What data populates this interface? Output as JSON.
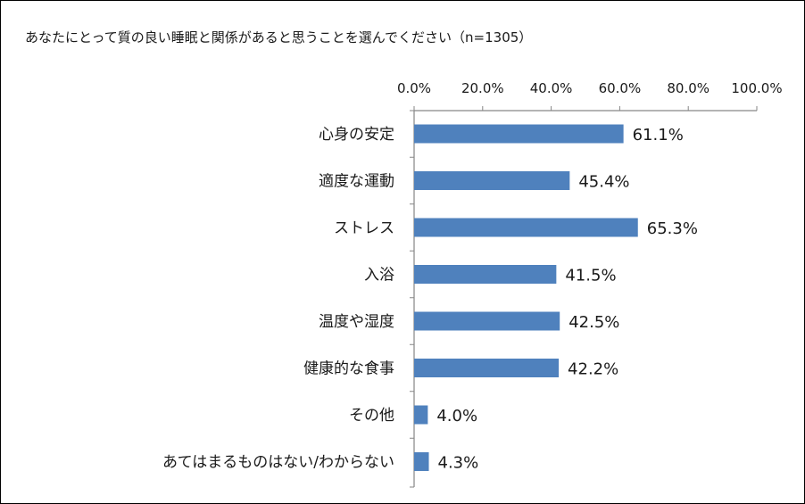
{
  "chart_data": {
    "type": "bar",
    "orientation": "horizontal",
    "title": "あなたにとって質の良い睡眠と関係があると思うことを選んでください（n=1305）",
    "categories": [
      "心身の安定",
      "適度な運動",
      "ストレス",
      "入浴",
      "温度や湿度",
      "健康的な食事",
      "その他",
      "あてはまるものはない/わからない"
    ],
    "values": [
      61.1,
      45.4,
      65.3,
      41.5,
      42.5,
      42.2,
      4.0,
      4.3
    ],
    "value_labels": [
      "61.1%",
      "45.4%",
      "65.3%",
      "41.5%",
      "42.5%",
      "42.2%",
      "4.0%",
      "4.3%"
    ],
    "xlim": [
      0,
      100
    ],
    "x_ticks": [
      "0.0%",
      "20.0%",
      "40.0%",
      "60.0%",
      "80.0%",
      "100.0%"
    ],
    "x_tick_values": [
      0,
      20,
      40,
      60,
      80,
      100
    ],
    "x_axis_position": "top",
    "grid": false,
    "legend": "none",
    "bar_color": "#4f81bd"
  }
}
